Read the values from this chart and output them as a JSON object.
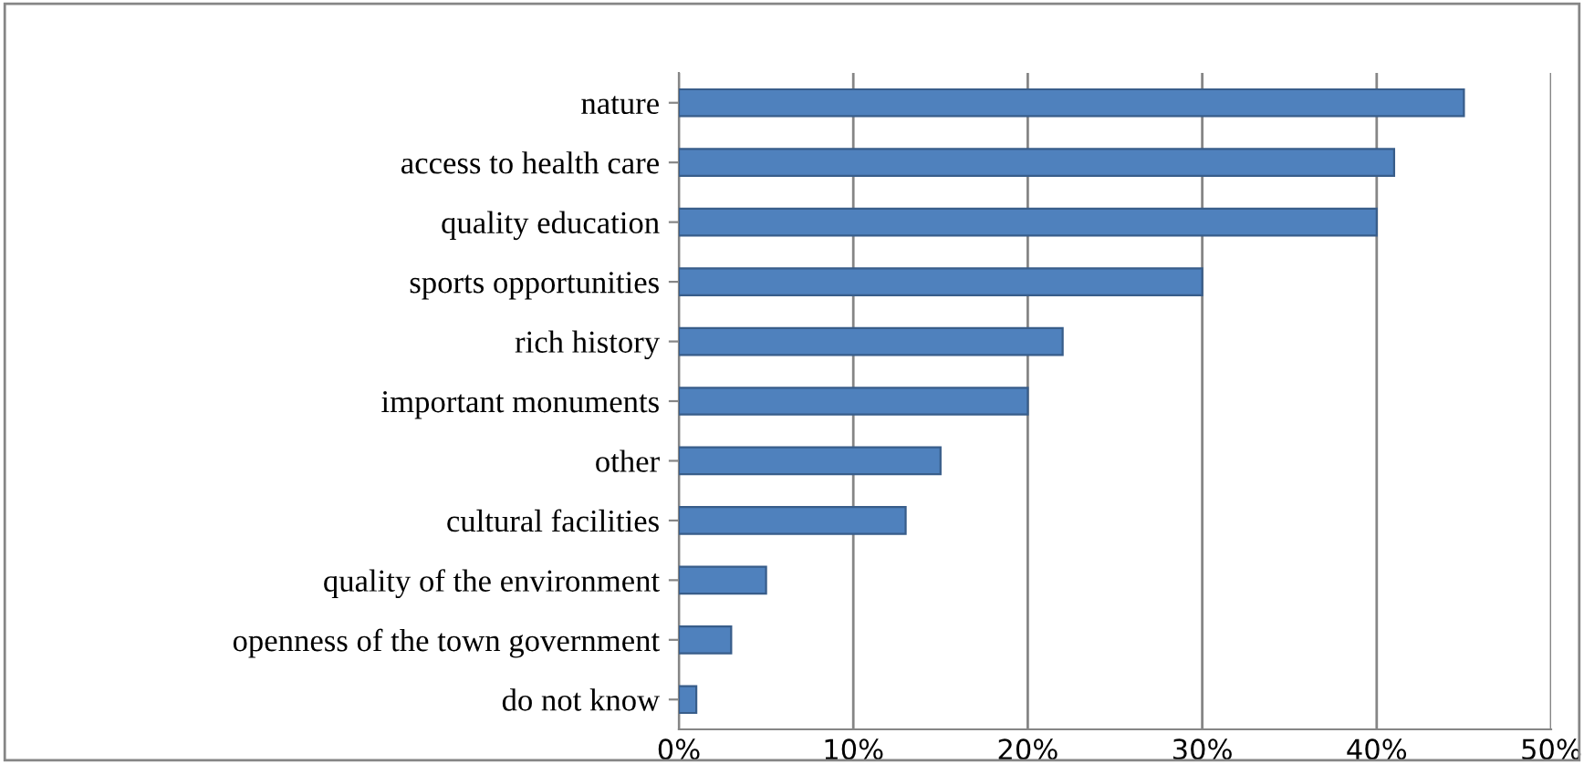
{
  "chart_data": {
    "type": "bar",
    "orientation": "horizontal",
    "categories": [
      "nature",
      "access to health care",
      "quality education",
      "sports opportunities",
      "rich history",
      "important monuments",
      "other",
      "cultural facilities",
      "quality of the environment",
      "openness of the town government",
      "do not know"
    ],
    "values": [
      45,
      41,
      40,
      30,
      22,
      20,
      15,
      13,
      5,
      3,
      1
    ],
    "color": "#4f81bd",
    "xlim": [
      0,
      50
    ],
    "xticks": [
      {
        "value": 0,
        "label": "0%"
      },
      {
        "value": 10,
        "label": "10%"
      },
      {
        "value": 20,
        "label": "20%"
      },
      {
        "value": 30,
        "label": "30%"
      },
      {
        "value": 40,
        "label": "40%"
      },
      {
        "value": 50,
        "label": "50%"
      }
    ],
    "grid": "x"
  }
}
